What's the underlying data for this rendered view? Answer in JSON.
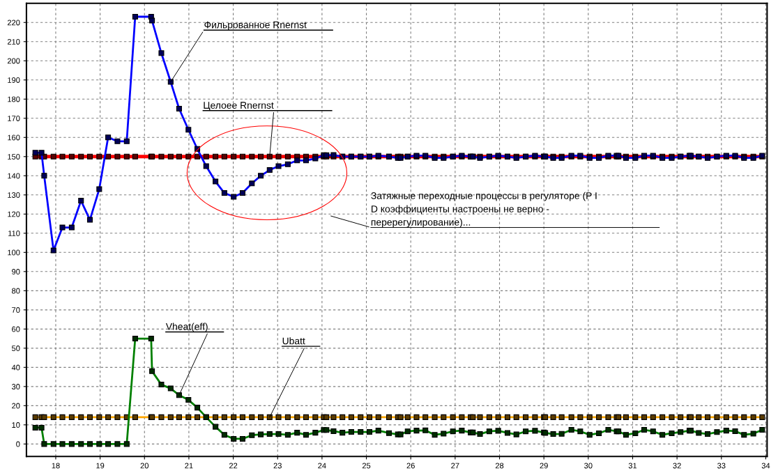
{
  "chart_data": {
    "type": "line",
    "x": [
      17.54,
      17.68,
      17.74,
      17.95,
      18.15,
      18.36,
      18.57,
      18.77,
      18.98,
      19.18,
      19.39,
      19.6,
      19.79,
      20.15,
      20.17,
      20.38,
      20.59,
      20.78,
      20.99,
      21.19,
      21.39,
      21.6,
      21.8,
      22.01,
      22.21,
      22.42,
      22.62,
      22.82,
      23.02,
      23.23,
      23.44,
      23.64,
      23.85,
      24.04,
      24.1,
      24.26,
      24.46,
      24.66,
      24.87,
      25.07,
      25.27,
      25.51,
      25.71,
      25.77,
      25.93,
      26.13,
      26.33,
      26.54,
      26.74,
      26.95,
      27.15,
      27.35,
      27.4,
      27.56,
      27.77,
      27.97,
      28.18,
      28.38,
      28.59,
      28.8,
      29.0,
      29.03,
      29.21,
      29.4,
      29.62,
      29.82,
      30.03,
      30.24,
      30.45,
      30.64,
      30.68,
      30.85,
      31.06,
      31.26,
      31.46,
      31.67,
      31.88,
      32.08,
      32.28,
      32.31,
      32.49,
      32.69,
      32.9,
      33.11,
      33.31,
      33.51,
      33.72,
      33.92
    ],
    "series": [
      {
        "name": "Целоее Rnernst",
        "color": "#ff0000",
        "values": [
          150,
          150,
          150,
          150,
          150,
          150,
          150,
          150,
          150,
          150,
          150,
          150,
          150,
          150,
          150,
          150,
          150,
          150,
          150,
          150,
          150,
          150,
          150,
          150,
          150,
          150,
          150,
          150,
          150,
          150,
          150,
          150,
          150,
          150,
          150,
          150,
          150,
          150,
          150,
          150,
          150,
          150,
          150,
          150,
          150,
          150,
          150,
          150,
          150,
          150,
          150,
          150,
          150,
          150,
          150,
          150,
          150,
          150,
          150,
          150,
          150,
          150,
          150,
          150,
          150,
          150,
          150,
          150,
          150,
          150,
          150,
          150,
          150,
          150,
          150,
          150,
          150,
          150,
          150,
          150,
          150,
          150,
          150,
          150,
          150,
          150,
          150,
          150
        ]
      },
      {
        "name": "Фильрованное Rnernst",
        "color": "#0000ff",
        "values": [
          152,
          152,
          140,
          101,
          113,
          113,
          127,
          117,
          133,
          160,
          158,
          158,
          223,
          223,
          221,
          204,
          189,
          175,
          164,
          154,
          145,
          137,
          131,
          129,
          131,
          136,
          140,
          143,
          145,
          146,
          148,
          148,
          149,
          150.7,
          150.7,
          150.8,
          150,
          150,
          150,
          150,
          150.5,
          150,
          149.3,
          149.3,
          150,
          150.5,
          150.5,
          149.3,
          149.3,
          150,
          150.5,
          150,
          150,
          149.3,
          150,
          150.5,
          150,
          149.3,
          150,
          150.5,
          150,
          150,
          149.3,
          149.3,
          150.5,
          150.5,
          149.3,
          149.3,
          150.5,
          150.5,
          150.5,
          149.3,
          149.3,
          150.5,
          150.5,
          149.3,
          149.3,
          150,
          150.5,
          150.5,
          150,
          149.3,
          150,
          150.5,
          150.5,
          149.3,
          149.3,
          150.5
        ]
      },
      {
        "name": "Ubatt",
        "color": "#ffa500",
        "values": [
          14,
          14,
          14,
          14,
          14,
          14,
          14,
          14,
          14,
          14,
          14,
          14,
          14,
          14,
          14,
          14,
          14,
          14,
          14,
          14,
          14,
          14,
          14,
          14,
          14,
          14,
          14,
          14,
          14,
          14,
          14,
          14,
          14,
          14,
          14,
          14,
          14,
          14,
          14,
          14,
          14,
          14,
          14,
          14,
          14,
          14,
          14,
          14,
          14,
          14,
          14,
          14,
          14,
          14,
          14,
          14,
          14,
          14,
          14,
          14,
          14,
          14,
          14,
          14,
          14,
          14,
          14,
          14,
          14,
          14,
          14,
          14,
          14,
          14,
          14,
          14,
          14,
          14,
          14,
          14,
          14,
          14,
          14,
          14,
          14,
          14,
          14,
          14
        ]
      },
      {
        "name": "Vheat(eff)",
        "color": "#008000",
        "values": [
          8.5,
          8.5,
          0,
          0,
          0,
          0,
          0,
          0,
          0,
          0,
          0,
          0,
          55,
          55,
          38,
          31,
          29,
          25.5,
          23,
          19,
          14,
          9,
          4.8,
          2.7,
          2.7,
          4.6,
          5.0,
          5.2,
          5.2,
          4.8,
          5.9,
          4.8,
          5.9,
          7.3,
          7.3,
          6.7,
          5.9,
          6.3,
          6.3,
          6.3,
          7.0,
          5.7,
          5.0,
          5.0,
          6.6,
          7.0,
          7.1,
          4.8,
          5.4,
          6.6,
          7.0,
          6.0,
          6.0,
          5.2,
          6.6,
          6.9,
          5.8,
          5.0,
          6.6,
          6.9,
          6.0,
          5.8,
          5.2,
          5.3,
          7.4,
          6.6,
          4.8,
          5.6,
          7.4,
          6.6,
          6.6,
          4.8,
          5.6,
          7.4,
          6.6,
          4.8,
          5.6,
          6.2,
          7.0,
          7.0,
          5.8,
          5.2,
          6.2,
          7.0,
          6.7,
          4.8,
          5.4,
          7.4
        ]
      }
    ],
    "annotations": [
      "Затяжные переходные процессы в регуляторе (P I\nD коэффициенты настроены не верно -\nперерегулирование)..."
    ],
    "xlim": [
      17.34,
      34.03
    ],
    "ylim": [
      -6.5,
      230
    ],
    "xticks": [
      18,
      19,
      20,
      21,
      22,
      23,
      24,
      25,
      26,
      27,
      28,
      29,
      30,
      31,
      32,
      33,
      34
    ],
    "yticks": [
      0,
      10,
      20,
      30,
      40,
      50,
      60,
      70,
      80,
      90,
      100,
      110,
      120,
      130,
      140,
      150,
      160,
      170,
      180,
      190,
      200,
      210,
      220
    ],
    "grid": true,
    "marker": "square",
    "line_style": "solid",
    "legend": false
  }
}
